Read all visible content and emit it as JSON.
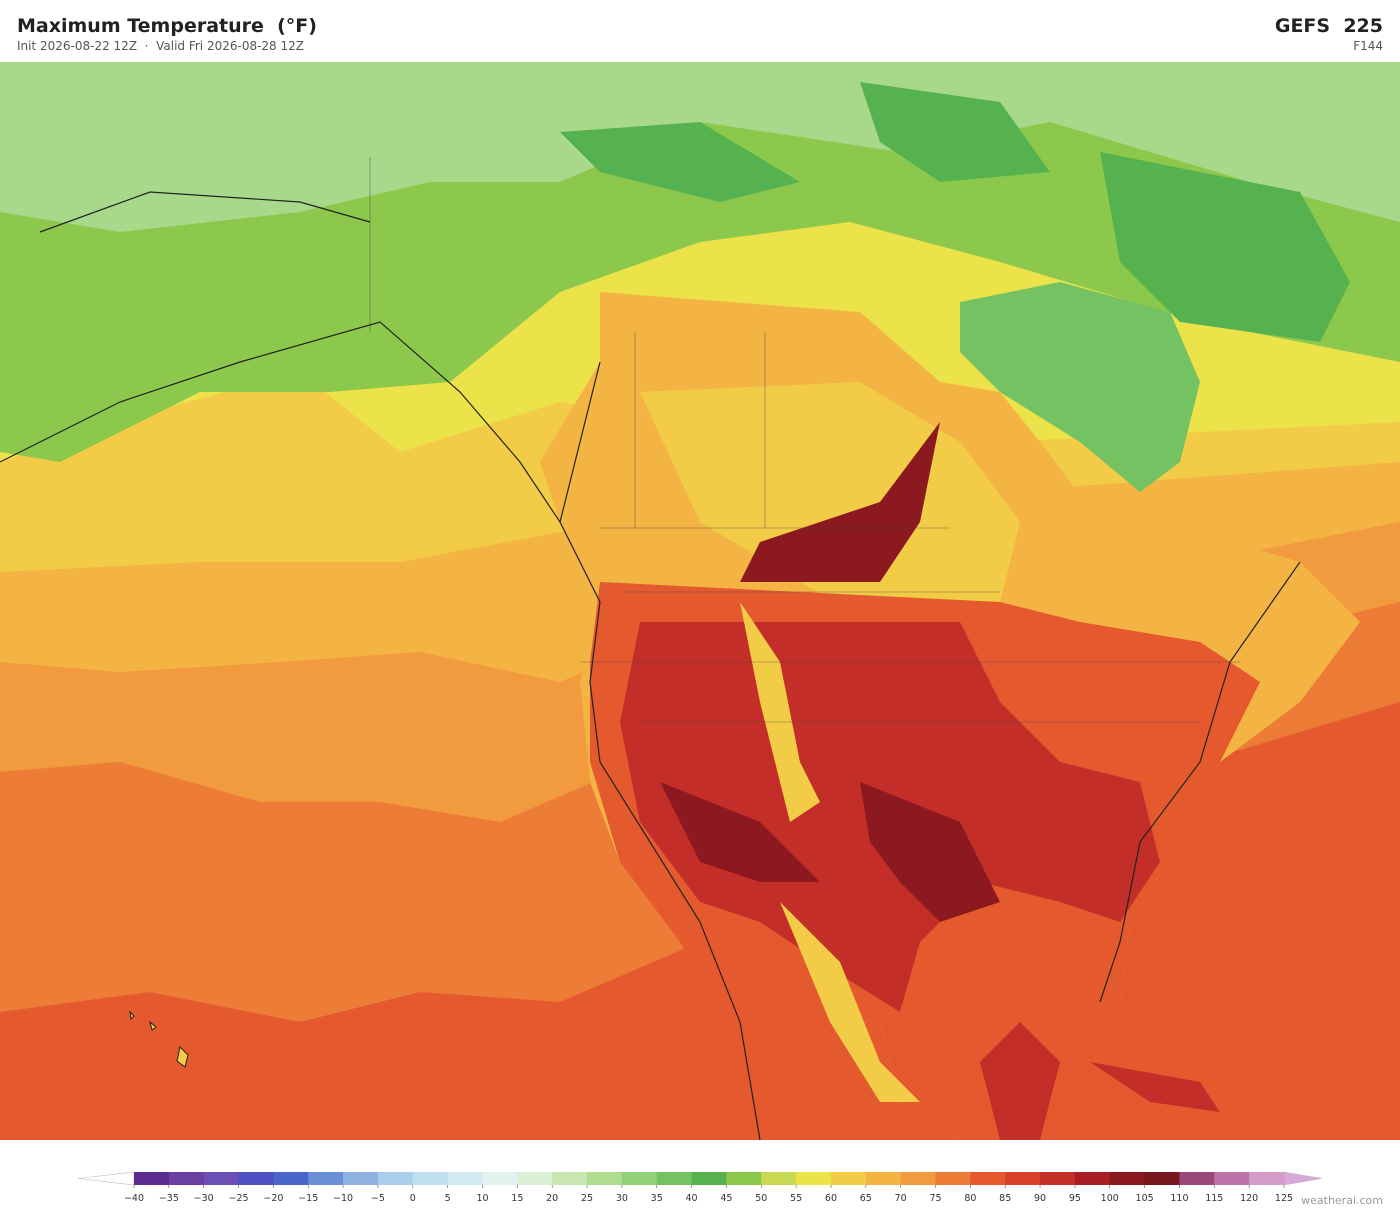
{
  "header": {
    "title": "Maximum Temperature  (°F)",
    "subtitle": "Init 2026-08-22 12Z  ·  Valid Fri 2026-08-28 12Z",
    "model": "GEFS  225",
    "forecast_hour": "F144"
  },
  "colorbar": {
    "ticks": [
      {
        "value": -40,
        "label": "−40"
      },
      {
        "value": -35,
        "label": "−35"
      },
      {
        "value": -30,
        "label": "−30"
      },
      {
        "value": -25,
        "label": "−25"
      },
      {
        "value": -20,
        "label": "−20"
      },
      {
        "value": -15,
        "label": "−15"
      },
      {
        "value": -10,
        "label": "−10"
      },
      {
        "value": -5,
        "label": "−5"
      },
      0,
      5,
      10,
      15,
      20,
      25,
      30,
      35,
      40,
      45,
      50,
      55,
      60,
      65,
      70,
      75,
      80,
      85,
      90,
      95,
      100,
      105,
      110,
      115,
      120,
      125
    ],
    "colors": [
      "#5b2a8e",
      "#6a3fa0",
      "#6b4fb5",
      "#4f4fc4",
      "#4a66cc",
      "#6a8fd6",
      "#8fb4e0",
      "#a8d0ec",
      "#bfe0f0",
      "#d2ebf2",
      "#e2f2ee",
      "#dcf0d6",
      "#c8e6b0",
      "#b0dc90",
      "#92d078",
      "#74c262",
      "#56b24e",
      "#8cc84c",
      "#c8d850",
      "#ece24a",
      "#f2cc46",
      "#f4b444",
      "#f29a3e",
      "#ec7c36",
      "#e45a2e",
      "#d8402a",
      "#c42e28",
      "#a81e24",
      "#8c1820",
      "#78161e",
      "#9a4878",
      "#bc72a8",
      "#d49cc8"
    ],
    "under_color": "#ffffff",
    "over_color": "#d8a8d8"
  },
  "watermark": "weatherai.com"
}
